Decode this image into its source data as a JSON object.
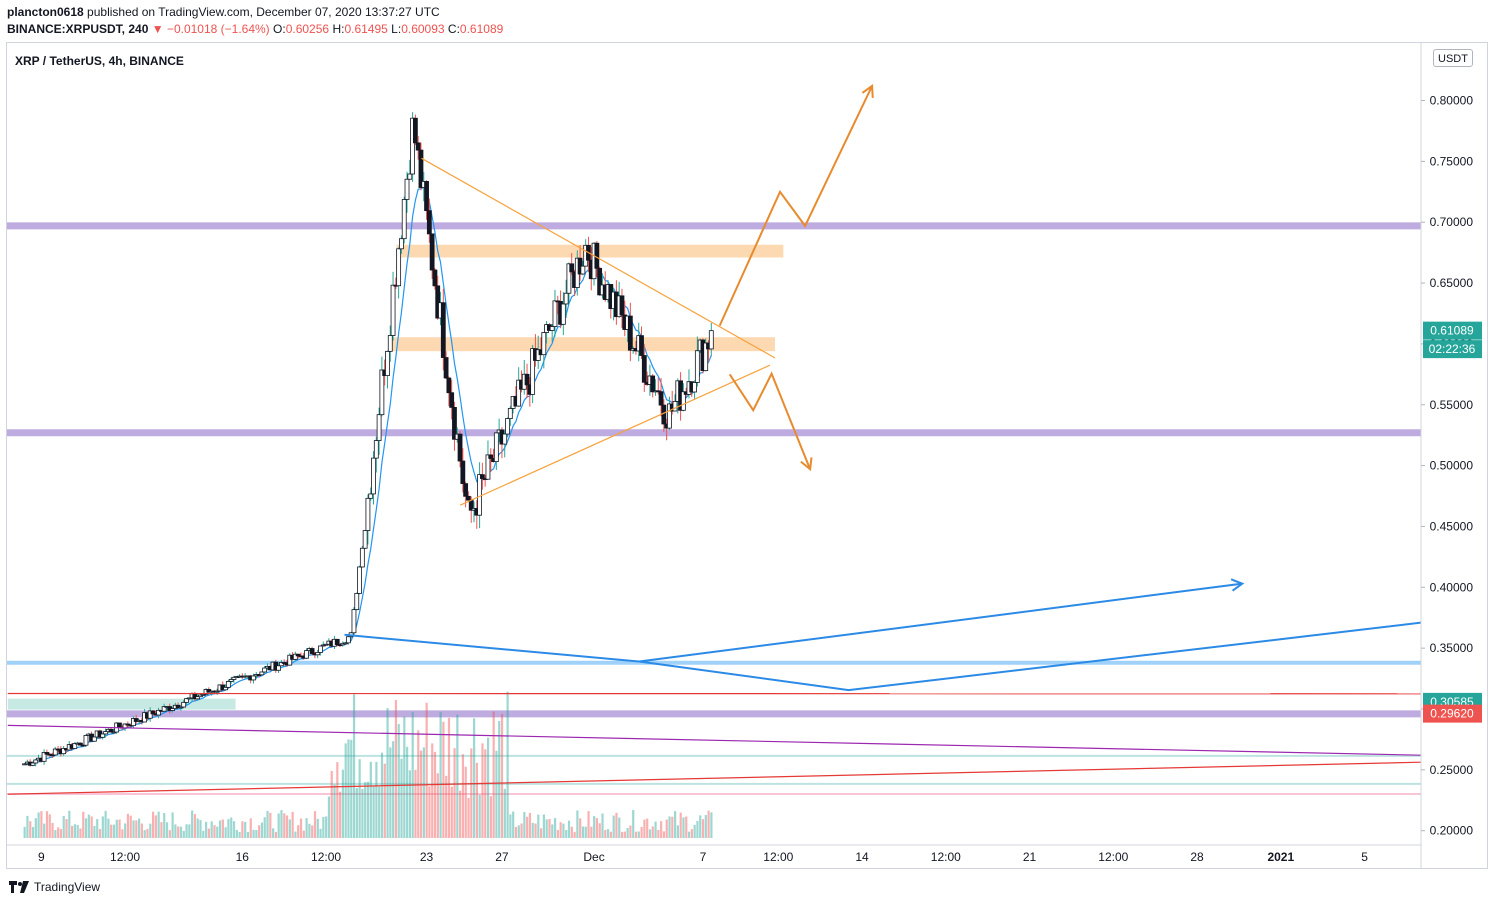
{
  "header": {
    "author": "plancton0618",
    "published_text": "published on TradingView.com, December 07, 2020 13:37:27 UTC",
    "symbol": "BINANCE:XRPUSDT, 240",
    "change": "▼ −0.01018 (−1.64%)",
    "o_label": "O:",
    "o_value": "0.60256",
    "h_label": "H:",
    "h_value": "0.61495",
    "l_label": "L:",
    "l_value": "0.60093",
    "c_label": "C:",
    "c_value": "0.61089"
  },
  "legend": "XRP / TetherUS, 4h, BINANCE",
  "currency_button": "USDT",
  "brand": "TradingView",
  "colors": {
    "up": "#26a69a",
    "down": "#ef5350",
    "ma": "#2196f3",
    "pattern": "#f7a23c",
    "arrow": "#e88a2e",
    "blue_line": "#2b8ae6",
    "support_purple": "#b39ddb",
    "zone_orange": "#fbcf9e"
  },
  "chart_data": {
    "type": "candlestick",
    "title": "XRP / TetherUS, 4h, BINANCE",
    "ylim": [
      0.19,
      0.82
    ],
    "y_ticks": [
      "0.80000",
      "0.75000",
      "0.70000",
      "0.65000",
      "0.60000",
      "0.55000",
      "0.50000",
      "0.45000",
      "0.40000",
      "0.35000",
      "0.30000",
      "0.25000",
      "0.20000"
    ],
    "y_tick_values": [
      0.8,
      0.75,
      0.7,
      0.65,
      0.6,
      0.55,
      0.5,
      0.45,
      0.4,
      0.35,
      0.3,
      0.25,
      0.2
    ],
    "x_ticks": [
      "9",
      "12:00",
      "16",
      "12:00",
      "23",
      "27",
      "Dec",
      "7",
      "12:00",
      "14",
      "12:00",
      "21",
      "12:00",
      "28",
      "2021",
      "5"
    ],
    "x_tick_values": [
      2,
      7,
      14,
      19,
      25,
      29.5,
      35,
      41.5,
      46,
      51,
      56,
      61,
      66,
      71,
      76,
      81
    ],
    "x_tick_bold": [
      "2021"
    ],
    "price_labels": [
      {
        "text": "0.61089",
        "value": 0.61089,
        "color": "#26a69a"
      },
      {
        "text": "02:22:36",
        "value": 0.5957,
        "color": "#26a69a"
      },
      {
        "text": "0.30585",
        "value": 0.30585,
        "color": "#26a69a"
      },
      {
        "text": "0.29620",
        "value": 0.2962,
        "color": "#ef5350"
      }
    ],
    "key_points": [
      {
        "label": "pre-rally base",
        "x": 1,
        "y": 0.255
      },
      {
        "label": "breakout start",
        "x": 20.5,
        "y": 0.36
      },
      {
        "label": "spike high",
        "x": 24.2,
        "y": 0.78
      },
      {
        "label": "retrace low",
        "x": 27.5,
        "y": 0.457
      },
      {
        "label": "range high",
        "x": 34.5,
        "y": 0.68
      },
      {
        "label": "higher low",
        "x": 39.5,
        "y": 0.542
      },
      {
        "label": "last close",
        "x": 42.1,
        "y": 0.61089
      }
    ],
    "horizontal_levels": [
      {
        "name": "resistance",
        "value": 0.697,
        "color": "#b39ddb"
      },
      {
        "name": "support",
        "value": 0.527,
        "color": "#b39ddb"
      },
      {
        "name": "support",
        "value": 0.296,
        "color": "#b39ddb"
      },
      {
        "name": "level",
        "value": 0.338,
        "color": "#90caf9"
      },
      {
        "name": "level",
        "value": 0.2615,
        "color": "#b2dfdb"
      },
      {
        "name": "level",
        "value": 0.2385,
        "color": "#b2dfdb"
      },
      {
        "name": "level",
        "value": 0.2302,
        "color": "#f8bbd0"
      }
    ],
    "zones": [
      {
        "name": "resistance zone",
        "x1": 23.2,
        "x2": 46.3,
        "y1": 0.6815,
        "y2": 0.671
      },
      {
        "name": "pivot zone",
        "x1": 22.8,
        "x2": 45.8,
        "y1": 0.6055,
        "y2": 0.594
      },
      {
        "name": "base zone",
        "x1": 0,
        "x2": 13.6,
        "y1": 0.3085,
        "y2": 0.2995
      }
    ],
    "trendlines": [
      {
        "name": "triangle upper",
        "color": "#f7a23c",
        "points": [
          [
            24.7,
            0.7525
          ],
          [
            45.8,
            0.5885
          ]
        ]
      },
      {
        "name": "triangle lower",
        "color": "#f7a23c",
        "points": [
          [
            27.0,
            0.4675
          ],
          [
            45.5,
            0.5825
          ]
        ]
      },
      {
        "name": "bullish projection",
        "color": "#e88a2e",
        "points": [
          [
            42.5,
            0.615
          ],
          [
            46.1,
            0.725
          ],
          [
            47.6,
            0.697
          ],
          [
            51.6,
            0.812
          ]
        ]
      },
      {
        "name": "bearish projection",
        "color": "#e88a2e",
        "points": [
          [
            43.1,
            0.575
          ],
          [
            44.5,
            0.5455
          ],
          [
            45.6,
            0.5755
          ],
          [
            47.9,
            0.497
          ]
        ]
      },
      {
        "name": "blue descending",
        "color": "#2b8ae6",
        "points": [
          [
            20.1,
            0.361
          ],
          [
            37.7,
            0.339
          ],
          [
            50.2,
            0.3155
          ],
          [
            84.4,
            0.371
          ]
        ]
      },
      {
        "name": "blue projection",
        "color": "#2b8ae6",
        "points": [
          [
            37.7,
            0.339
          ],
          [
            73.7,
            0.403
          ]
        ]
      },
      {
        "name": "red upper",
        "color": "#e53935",
        "points": [
          [
            0,
            0.3127
          ],
          [
            84.4,
            0.3125
          ]
        ]
      },
      {
        "name": "red lower",
        "color": "#e53935",
        "points": [
          [
            0,
            0.23
          ],
          [
            84.4,
            0.2563
          ]
        ]
      },
      {
        "name": "purple",
        "color": "#9c27b0",
        "points": [
          [
            0,
            0.2865
          ],
          [
            84.4,
            0.262
          ]
        ]
      }
    ]
  }
}
